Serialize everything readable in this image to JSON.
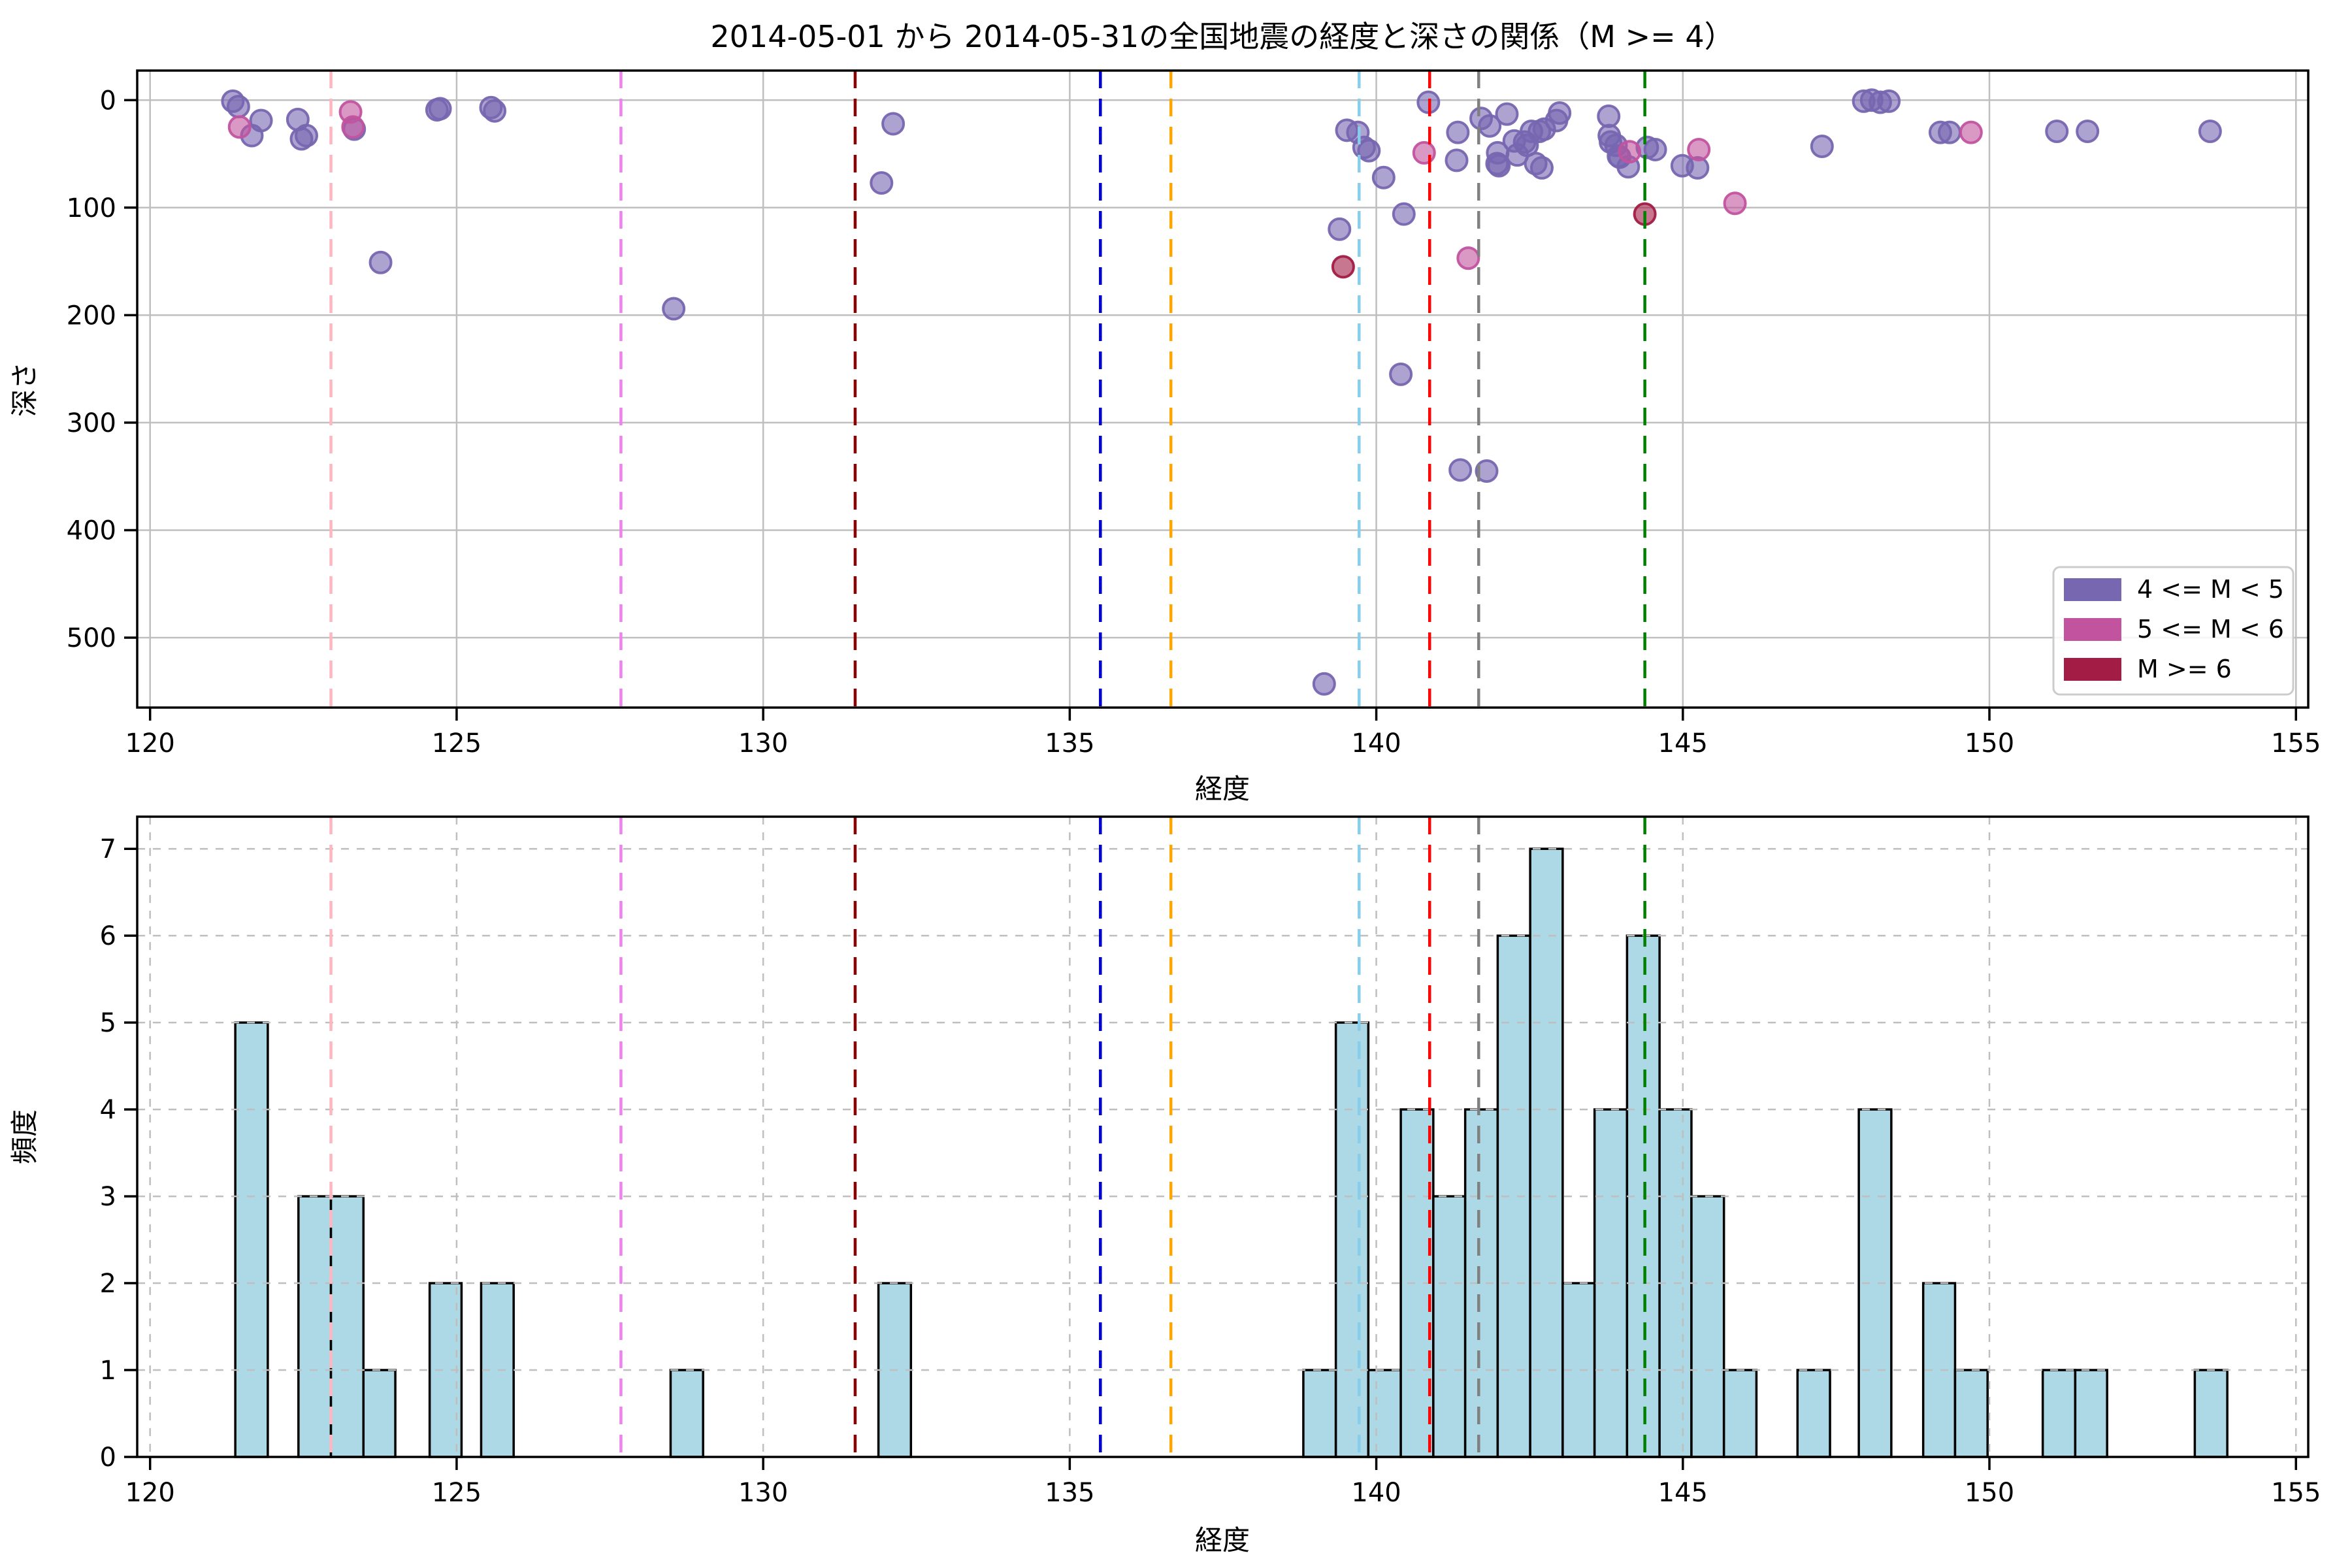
{
  "title": "2014-05-01 から 2014-05-31の全国地震の経度と深さの関係（M >= 4）",
  "colors": {
    "m4_5": "#7766b0",
    "m5_6": "#c2539f",
    "m6": "#a21c45",
    "hist_fill": "#add8e6",
    "hist_edge": "#000000",
    "grid": "#bfbfbf",
    "spine": "#000000",
    "legend_border": "#cccccc"
  },
  "legend": {
    "items": [
      {
        "label": "4 <= M < 5",
        "color": "#7766b0"
      },
      {
        "label": "5 <= M < 6",
        "color": "#c2539f"
      },
      {
        "label": "M >= 6",
        "color": "#a21c45"
      }
    ]
  },
  "vlines": [
    {
      "name": "lightpink-line",
      "x": 122.95,
      "color": "#ffb6c1"
    },
    {
      "name": "violet-line",
      "x": 127.68,
      "color": "#ee82ee"
    },
    {
      "name": "darkred-line",
      "x": 131.5,
      "color": "#8b0000"
    },
    {
      "name": "blue-line",
      "x": 135.5,
      "color": "#0000cd"
    },
    {
      "name": "orange-line",
      "x": 136.65,
      "color": "#ffa500"
    },
    {
      "name": "skyblue-line",
      "x": 139.72,
      "color": "#87ceeb"
    },
    {
      "name": "red-line",
      "x": 140.87,
      "color": "#ff0000"
    },
    {
      "name": "gray-line",
      "x": 141.67,
      "color": "#808080"
    },
    {
      "name": "green-line",
      "x": 144.38,
      "color": "#008000"
    }
  ],
  "chart_data": [
    {
      "type": "scatter",
      "title": "2014-05-01 から 2014-05-31の全国地震の経度と深さの関係（M >= 4）",
      "xlabel": "経度",
      "ylabel": "深さ",
      "xlim": [
        119.79,
        155.2
      ],
      "ylim": [
        565,
        -27.5
      ],
      "xticks": [
        120,
        125,
        130,
        135,
        140,
        145,
        150,
        155
      ],
      "yticks": [
        0,
        100,
        200,
        300,
        400,
        500
      ],
      "grid": "solid",
      "legend_position": "lower right",
      "series": [
        {
          "name": "4 <= M < 5",
          "color": "#7766b0",
          "points": [
            [
              121.35,
              1
            ],
            [
              121.44,
              6
            ],
            [
              121.81,
              19
            ],
            [
              121.66,
              33
            ],
            [
              122.41,
              18
            ],
            [
              122.47,
              36
            ],
            [
              122.55,
              33
            ],
            [
              123.33,
              27
            ],
            [
              123.76,
              151
            ],
            [
              124.68,
              9
            ],
            [
              124.73,
              8
            ],
            [
              125.56,
              7
            ],
            [
              125.62,
              10
            ],
            [
              128.54,
              194
            ],
            [
              131.93,
              77
            ],
            [
              132.12,
              22
            ],
            [
              139.15,
              543
            ],
            [
              139.4,
              120
            ],
            [
              139.52,
              28
            ],
            [
              139.7,
              30
            ],
            [
              139.8,
              44
            ],
            [
              139.88,
              47
            ],
            [
              140.12,
              72
            ],
            [
              140.4,
              255
            ],
            [
              140.45,
              106
            ],
            [
              140.85,
              2
            ],
            [
              141.31,
              56
            ],
            [
              141.33,
              30
            ],
            [
              141.37,
              344
            ],
            [
              141.71,
              17
            ],
            [
              141.8,
              345
            ],
            [
              141.85,
              24
            ],
            [
              141.97,
              59
            ],
            [
              141.98,
              49
            ],
            [
              142.0,
              61
            ],
            [
              142.13,
              13
            ],
            [
              142.25,
              38
            ],
            [
              142.3,
              51
            ],
            [
              142.42,
              39
            ],
            [
              142.46,
              42
            ],
            [
              142.53,
              29
            ],
            [
              142.6,
              59
            ],
            [
              142.66,
              29
            ],
            [
              142.7,
              63
            ],
            [
              142.74,
              27
            ],
            [
              142.94,
              19
            ],
            [
              142.99,
              12
            ],
            [
              143.79,
              15
            ],
            [
              143.8,
              33
            ],
            [
              143.82,
              39
            ],
            [
              143.91,
              42
            ],
            [
              143.95,
              52
            ],
            [
              143.97,
              53
            ],
            [
              144.11,
              62
            ],
            [
              144.42,
              44
            ],
            [
              144.55,
              46
            ],
            [
              144.99,
              61
            ],
            [
              145.24,
              63
            ],
            [
              147.27,
              43
            ],
            [
              147.95,
              1
            ],
            [
              148.08,
              0
            ],
            [
              148.22,
              2
            ],
            [
              148.36,
              1
            ],
            [
              149.2,
              30
            ],
            [
              149.35,
              30
            ],
            [
              151.1,
              29
            ],
            [
              151.6,
              29
            ],
            [
              153.6,
              29
            ]
          ]
        },
        {
          "name": "5 <= M < 6",
          "color": "#c2539f",
          "points": [
            [
              121.46,
              25
            ],
            [
              123.27,
              11
            ],
            [
              123.31,
              25
            ],
            [
              140.78,
              49
            ],
            [
              141.5,
              147
            ],
            [
              144.13,
              48
            ],
            [
              145.26,
              46
            ],
            [
              145.85,
              96
            ],
            [
              149.7,
              30
            ]
          ]
        },
        {
          "name": "M >= 6",
          "color": "#a21c45",
          "points": [
            [
              139.46,
              155
            ],
            [
              144.38,
              106
            ]
          ]
        }
      ]
    },
    {
      "type": "bar",
      "xlabel": "経度",
      "ylabel": "頻度",
      "xlim": [
        119.79,
        155.2
      ],
      "ylim": [
        0,
        7.37
      ],
      "xticks": [
        120,
        125,
        130,
        135,
        140,
        145,
        150,
        155
      ],
      "yticks": [
        0,
        1,
        2,
        3,
        4,
        5,
        6,
        7
      ],
      "grid": "dashed",
      "bars": [
        [
          121.39,
          121.92,
          5
        ],
        [
          122.42,
          122.95,
          3
        ],
        [
          122.95,
          123.48,
          3
        ],
        [
          123.48,
          124.0,
          1
        ],
        [
          124.56,
          125.08,
          2
        ],
        [
          125.4,
          125.93,
          2
        ],
        [
          128.49,
          129.02,
          1
        ],
        [
          131.88,
          132.41,
          2
        ],
        [
          138.81,
          139.34,
          1
        ],
        [
          139.34,
          139.87,
          5
        ],
        [
          139.87,
          140.4,
          1
        ],
        [
          140.4,
          140.93,
          4
        ],
        [
          140.93,
          141.45,
          3
        ],
        [
          141.45,
          141.98,
          4
        ],
        [
          141.98,
          142.51,
          6
        ],
        [
          142.51,
          143.04,
          7
        ],
        [
          143.04,
          143.56,
          2
        ],
        [
          143.56,
          144.09,
          4
        ],
        [
          144.09,
          144.62,
          6
        ],
        [
          144.62,
          145.14,
          4
        ],
        [
          145.14,
          145.67,
          3
        ],
        [
          145.67,
          146.2,
          1
        ],
        [
          146.87,
          147.4,
          1
        ],
        [
          147.87,
          148.4,
          4
        ],
        [
          148.92,
          149.44,
          2
        ],
        [
          149.44,
          149.97,
          1
        ],
        [
          150.87,
          151.4,
          1
        ],
        [
          151.4,
          151.92,
          1
        ],
        [
          153.35,
          153.88,
          1
        ]
      ]
    }
  ]
}
